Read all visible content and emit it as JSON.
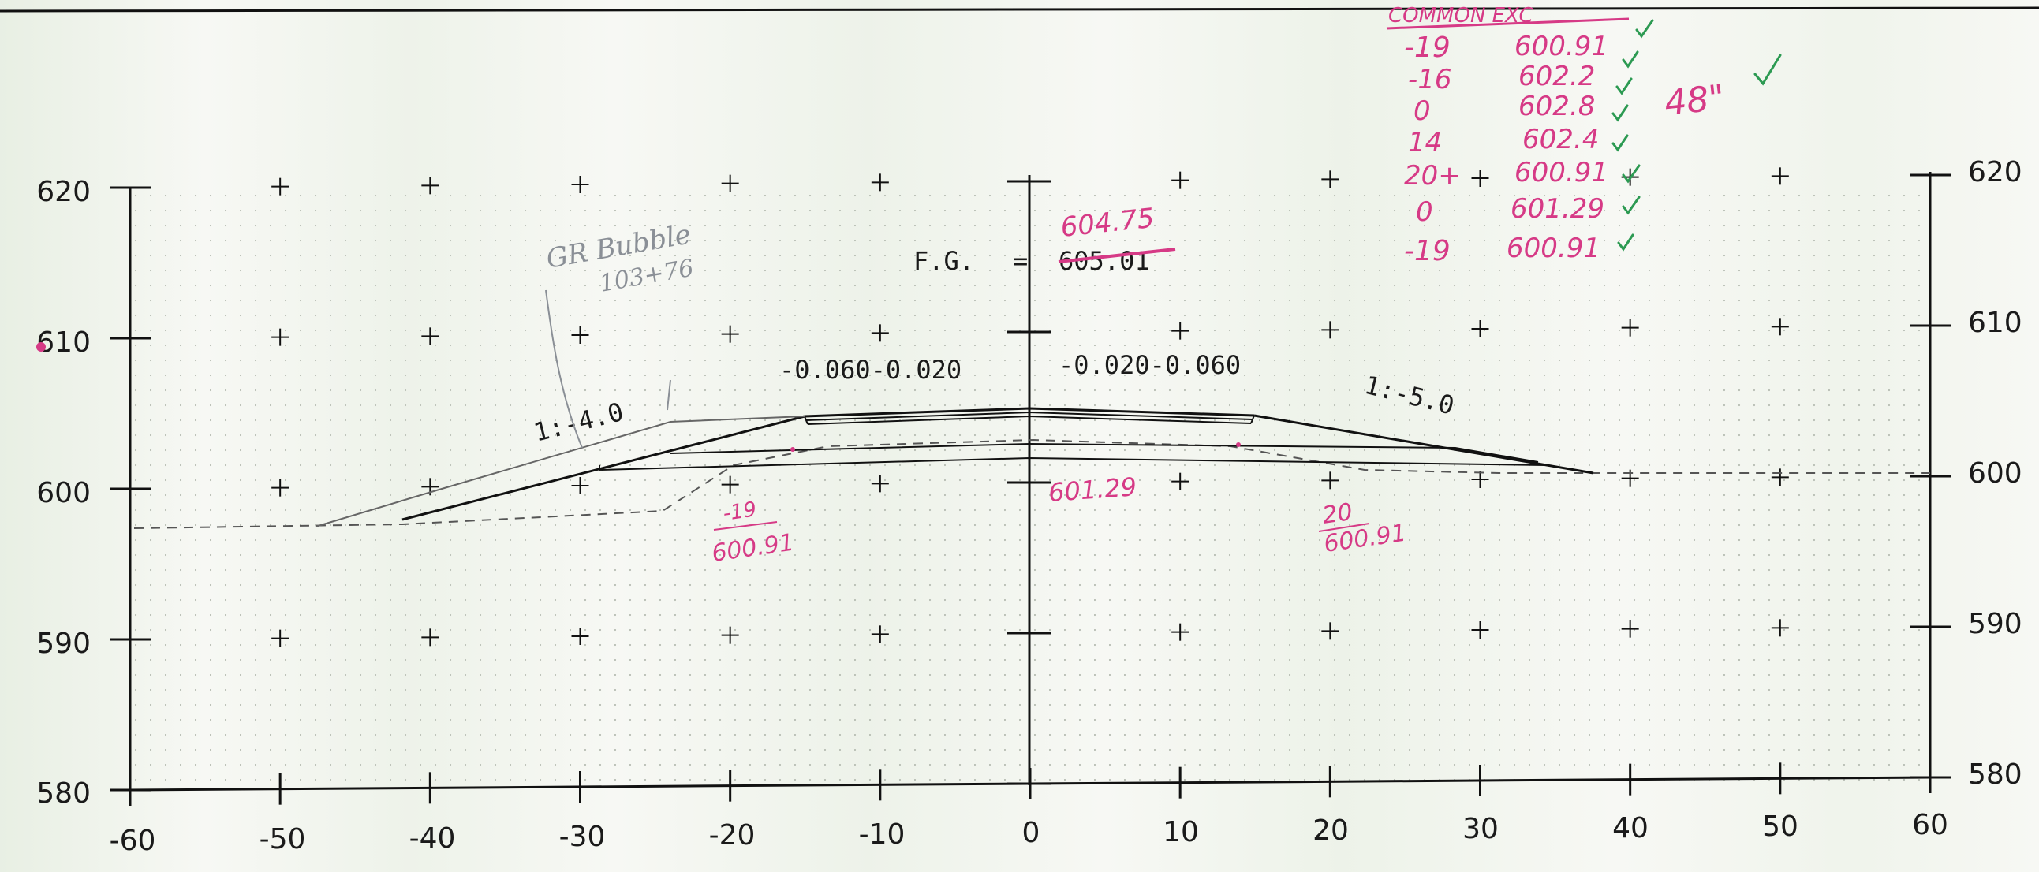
{
  "axes": {
    "x_ticks": [
      "-60",
      "-50",
      "-40",
      "-30",
      "-20",
      "-10",
      "0",
      "10",
      "20",
      "30",
      "40",
      "50",
      "60"
    ],
    "y_ticks_left": [
      "620",
      "610",
      "600",
      "590",
      "580"
    ],
    "y_ticks_right": [
      "620",
      "610",
      "600",
      "590",
      "580"
    ],
    "x_range": [
      -60,
      60
    ],
    "y_range": [
      580,
      620
    ]
  },
  "profile": {
    "fg_label": "F.G.",
    "fg_equals": "=",
    "fg_value": "605.01",
    "slope_left": "1:-4.0",
    "slope_right": "1:-5.0",
    "cross_slopes_left": "-0.060-0.020",
    "cross_slopes_right": "-0.020-0.060"
  },
  "annotations": {
    "fg_correction": "604.75",
    "gr_label_1": "GR Bubble",
    "gr_label_2": "103+76",
    "left_offset": "-19",
    "left_elev": "600.91",
    "center_elev": "601.29",
    "right_offset": "20",
    "right_elev": "600.91",
    "pipe_note": "48\""
  },
  "common_exc": {
    "header": "COMMON EXC",
    "rows": [
      {
        "offset": "-19",
        "elev": "600.91"
      },
      {
        "offset": "-16",
        "elev": "602.2"
      },
      {
        "offset": "0",
        "elev": "602.8"
      },
      {
        "offset": "14",
        "elev": "602.4"
      },
      {
        "offset": "20+",
        "elev": "600.91"
      },
      {
        "offset": "0",
        "elev": "601.29"
      },
      {
        "offset": "-19",
        "elev": "600.91"
      }
    ]
  }
}
